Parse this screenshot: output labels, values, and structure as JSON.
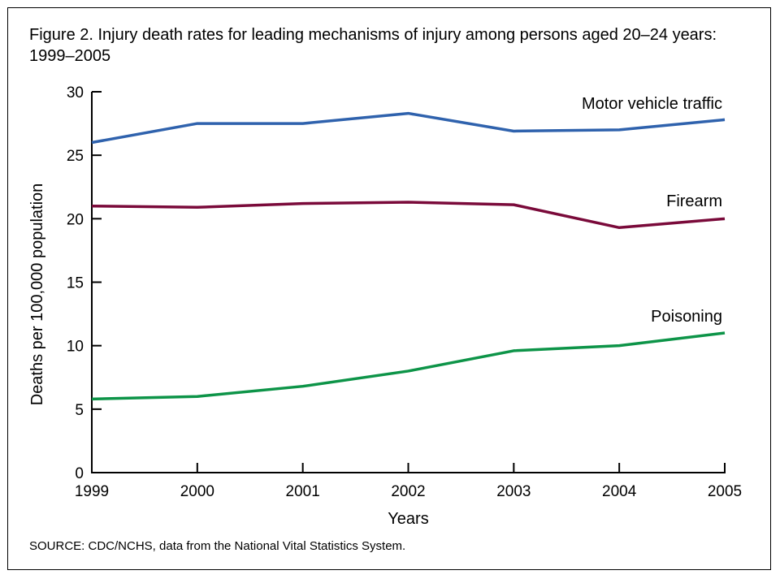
{
  "chart_data": {
    "type": "line",
    "title": "Figure 2. Injury death rates for leading mechanisms of injury among persons aged 20–24 years: 1999–2005",
    "xlabel": "Years",
    "ylabel": "Deaths per 100,000 population",
    "x": [
      1999,
      2000,
      2001,
      2002,
      2003,
      2004,
      2005
    ],
    "x_tick_labels": [
      "1999",
      "2000",
      "2001",
      "2002",
      "2003",
      "2004",
      "2005"
    ],
    "ylim": [
      0,
      30
    ],
    "y_ticks": [
      0,
      5,
      10,
      15,
      20,
      25,
      30
    ],
    "y_tick_labels": [
      "0",
      "5",
      "10",
      "15",
      "20",
      "25",
      "30"
    ],
    "grid": false,
    "legend": "inline labels at right end of lines",
    "series": [
      {
        "name": "Motor vehicle traffic",
        "color": "#2f62ad",
        "values": [
          26.0,
          27.5,
          27.5,
          28.3,
          26.9,
          27.0,
          27.8
        ]
      },
      {
        "name": "Firearm",
        "color": "#7a0a3a",
        "values": [
          21.0,
          20.9,
          21.2,
          21.3,
          21.1,
          19.3,
          20.0
        ]
      },
      {
        "name": "Poisoning",
        "color": "#0d9448",
        "values": [
          5.8,
          6.0,
          6.8,
          8.0,
          9.6,
          10.0,
          11.0
        ]
      }
    ],
    "source": "SOURCE: CDC/NCHS, data from the National Vital Statistics System."
  }
}
